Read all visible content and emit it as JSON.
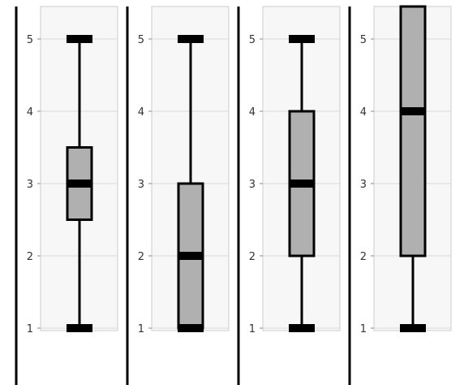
{
  "chart_data": [
    {
      "type": "boxplot",
      "y_ticks": [
        "1",
        "2",
        "3",
        "4",
        "5"
      ],
      "ylim": [
        1,
        5
      ],
      "grid": true,
      "box": {
        "min": 1,
        "q1": 2.5,
        "median": 3,
        "q3": 3.5,
        "max": 5
      },
      "colors": {
        "box_fill": "#b0b0b0",
        "stroke": "#000000",
        "plot_bg": "#f7f7f7",
        "grid": "#d9d9d9"
      }
    },
    {
      "type": "boxplot",
      "y_ticks": [
        "1",
        "2",
        "3",
        "4",
        "5"
      ],
      "ylim": [
        1,
        5
      ],
      "grid": true,
      "box": {
        "min": 1,
        "q1": 1,
        "median": 2,
        "q3": 3,
        "max": 5
      },
      "colors": {
        "box_fill": "#b0b0b0",
        "stroke": "#000000",
        "plot_bg": "#f7f7f7",
        "grid": "#d9d9d9"
      }
    },
    {
      "type": "boxplot",
      "y_ticks": [
        "1",
        "2",
        "3",
        "4",
        "5"
      ],
      "ylim": [
        1,
        5
      ],
      "grid": true,
      "box": {
        "min": 1,
        "q1": 2,
        "median": 3,
        "q3": 4,
        "max": 5
      },
      "colors": {
        "box_fill": "#b0b0b0",
        "stroke": "#000000",
        "plot_bg": "#f7f7f7",
        "grid": "#d9d9d9"
      }
    },
    {
      "type": "boxplot",
      "y_ticks": [
        "1",
        "2",
        "3",
        "4",
        "5"
      ],
      "ylim": [
        1,
        5
      ],
      "grid": true,
      "box": {
        "min": 1,
        "q1": 2,
        "median": 4,
        "q3": 5.5,
        "max": 5.5
      },
      "colors": {
        "box_fill": "#b0b0b0",
        "stroke": "#000000",
        "plot_bg": "#f7f7f7",
        "grid": "#d9d9d9"
      }
    }
  ]
}
